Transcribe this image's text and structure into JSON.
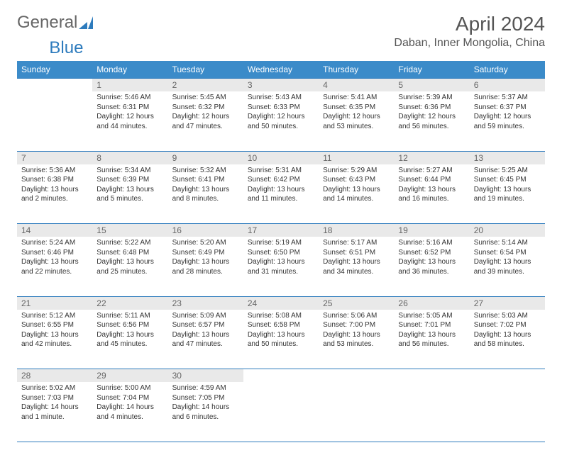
{
  "logo": {
    "text1": "General",
    "text2": "Blue",
    "brand_color": "#2d7bbd"
  },
  "title": "April 2024",
  "location": "Daban, Inner Mongolia, China",
  "colors": {
    "header_bg": "#3b8bc9",
    "header_text": "#ffffff",
    "border": "#2d7bbd",
    "daynum_bg": "#e9e9e9",
    "daynum_text": "#666666",
    "body_text": "#333333"
  },
  "weekdays": [
    "Sunday",
    "Monday",
    "Tuesday",
    "Wednesday",
    "Thursday",
    "Friday",
    "Saturday"
  ],
  "weeks": [
    [
      null,
      {
        "n": "1",
        "sunrise": "5:46 AM",
        "sunset": "6:31 PM",
        "daylight": "12 hours and 44 minutes."
      },
      {
        "n": "2",
        "sunrise": "5:45 AM",
        "sunset": "6:32 PM",
        "daylight": "12 hours and 47 minutes."
      },
      {
        "n": "3",
        "sunrise": "5:43 AM",
        "sunset": "6:33 PM",
        "daylight": "12 hours and 50 minutes."
      },
      {
        "n": "4",
        "sunrise": "5:41 AM",
        "sunset": "6:35 PM",
        "daylight": "12 hours and 53 minutes."
      },
      {
        "n": "5",
        "sunrise": "5:39 AM",
        "sunset": "6:36 PM",
        "daylight": "12 hours and 56 minutes."
      },
      {
        "n": "6",
        "sunrise": "5:37 AM",
        "sunset": "6:37 PM",
        "daylight": "12 hours and 59 minutes."
      }
    ],
    [
      {
        "n": "7",
        "sunrise": "5:36 AM",
        "sunset": "6:38 PM",
        "daylight": "13 hours and 2 minutes."
      },
      {
        "n": "8",
        "sunrise": "5:34 AM",
        "sunset": "6:39 PM",
        "daylight": "13 hours and 5 minutes."
      },
      {
        "n": "9",
        "sunrise": "5:32 AM",
        "sunset": "6:41 PM",
        "daylight": "13 hours and 8 minutes."
      },
      {
        "n": "10",
        "sunrise": "5:31 AM",
        "sunset": "6:42 PM",
        "daylight": "13 hours and 11 minutes."
      },
      {
        "n": "11",
        "sunrise": "5:29 AM",
        "sunset": "6:43 PM",
        "daylight": "13 hours and 14 minutes."
      },
      {
        "n": "12",
        "sunrise": "5:27 AM",
        "sunset": "6:44 PM",
        "daylight": "13 hours and 16 minutes."
      },
      {
        "n": "13",
        "sunrise": "5:25 AM",
        "sunset": "6:45 PM",
        "daylight": "13 hours and 19 minutes."
      }
    ],
    [
      {
        "n": "14",
        "sunrise": "5:24 AM",
        "sunset": "6:46 PM",
        "daylight": "13 hours and 22 minutes."
      },
      {
        "n": "15",
        "sunrise": "5:22 AM",
        "sunset": "6:48 PM",
        "daylight": "13 hours and 25 minutes."
      },
      {
        "n": "16",
        "sunrise": "5:20 AM",
        "sunset": "6:49 PM",
        "daylight": "13 hours and 28 minutes."
      },
      {
        "n": "17",
        "sunrise": "5:19 AM",
        "sunset": "6:50 PM",
        "daylight": "13 hours and 31 minutes."
      },
      {
        "n": "18",
        "sunrise": "5:17 AM",
        "sunset": "6:51 PM",
        "daylight": "13 hours and 34 minutes."
      },
      {
        "n": "19",
        "sunrise": "5:16 AM",
        "sunset": "6:52 PM",
        "daylight": "13 hours and 36 minutes."
      },
      {
        "n": "20",
        "sunrise": "5:14 AM",
        "sunset": "6:54 PM",
        "daylight": "13 hours and 39 minutes."
      }
    ],
    [
      {
        "n": "21",
        "sunrise": "5:12 AM",
        "sunset": "6:55 PM",
        "daylight": "13 hours and 42 minutes."
      },
      {
        "n": "22",
        "sunrise": "5:11 AM",
        "sunset": "6:56 PM",
        "daylight": "13 hours and 45 minutes."
      },
      {
        "n": "23",
        "sunrise": "5:09 AM",
        "sunset": "6:57 PM",
        "daylight": "13 hours and 47 minutes."
      },
      {
        "n": "24",
        "sunrise": "5:08 AM",
        "sunset": "6:58 PM",
        "daylight": "13 hours and 50 minutes."
      },
      {
        "n": "25",
        "sunrise": "5:06 AM",
        "sunset": "7:00 PM",
        "daylight": "13 hours and 53 minutes."
      },
      {
        "n": "26",
        "sunrise": "5:05 AM",
        "sunset": "7:01 PM",
        "daylight": "13 hours and 56 minutes."
      },
      {
        "n": "27",
        "sunrise": "5:03 AM",
        "sunset": "7:02 PM",
        "daylight": "13 hours and 58 minutes."
      }
    ],
    [
      {
        "n": "28",
        "sunrise": "5:02 AM",
        "sunset": "7:03 PM",
        "daylight": "14 hours and 1 minute."
      },
      {
        "n": "29",
        "sunrise": "5:00 AM",
        "sunset": "7:04 PM",
        "daylight": "14 hours and 4 minutes."
      },
      {
        "n": "30",
        "sunrise": "4:59 AM",
        "sunset": "7:05 PM",
        "daylight": "14 hours and 6 minutes."
      },
      null,
      null,
      null,
      null
    ]
  ],
  "labels": {
    "sunrise": "Sunrise:",
    "sunset": "Sunset:",
    "daylight": "Daylight:"
  }
}
